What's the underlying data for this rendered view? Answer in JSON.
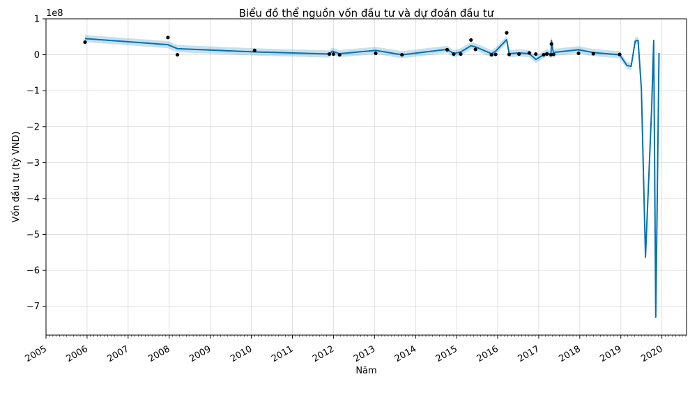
{
  "chart_data": {
    "type": "line",
    "title": "Biểu đồ thể nguồn vốn đầu tư và dự đoán đầu tư",
    "xlabel": "Năm",
    "ylabel": "Vốn đầu tư (tỷ VND)",
    "y_offset_text": "1e8",
    "y_multiplier": 100000000,
    "x_tick_labels": [
      "2005",
      "2006",
      "2007",
      "2008",
      "2009",
      "2010",
      "2011",
      "2012",
      "2013",
      "2014",
      "2015",
      "2016",
      "2017",
      "2018",
      "2019",
      "2020"
    ],
    "y_tick_labels": [
      "1",
      "0",
      "−1",
      "−2",
      "−3",
      "−4",
      "−5",
      "−6",
      "−7"
    ],
    "xlim": [
      2005.0,
      2020.6
    ],
    "ylim": [
      -7.8,
      1.0
    ],
    "grid": true,
    "colors": {
      "forecast_line": "#0072B2",
      "interval_fill": "#0072B2",
      "observations": "#000000",
      "grid": "#d9d9d9"
    },
    "series": [
      {
        "kind": "forecast",
        "x": [
          2005.95,
          2007.97,
          2008.2,
          2010.08,
          2011.9,
          2011.97,
          2012.15,
          2013.03,
          2013.67,
          2014.77,
          2014.93,
          2015.1,
          2015.35,
          2015.46,
          2015.85,
          2015.95,
          2016.22,
          2016.28,
          2016.52,
          2016.77,
          2016.93,
          2017.12,
          2017.2,
          2017.3,
          2017.31,
          2017.36,
          2017.4,
          2017.97,
          2018.33,
          2018.97,
          2019.15,
          2019.25,
          2019.35,
          2019.42,
          2019.5,
          2019.6,
          2019.75,
          2019.8,
          2019.85,
          2019.93
        ],
        "y": [
          0.45,
          0.28,
          0.17,
          0.08,
          0.02,
          0.1,
          0.03,
          0.12,
          0.0,
          0.15,
          0.03,
          0.08,
          0.25,
          0.22,
          0.03,
          0.1,
          0.42,
          0.03,
          0.05,
          0.03,
          -0.13,
          0.0,
          0.06,
          0.0,
          0.4,
          0.02,
          0.07,
          0.14,
          0.06,
          0.0,
          -0.3,
          -0.32,
          0.38,
          0.4,
          -0.95,
          -5.63,
          -1.5,
          0.4,
          -7.3,
          0.05
        ],
        "interval_width": 0.1
      },
      {
        "kind": "observed",
        "x": [
          2005.95,
          2007.97,
          2008.2,
          2010.08,
          2011.9,
          2012.0,
          2012.15,
          2013.03,
          2013.67,
          2014.77,
          2014.93,
          2015.1,
          2015.35,
          2015.46,
          2015.85,
          2015.95,
          2016.22,
          2016.28,
          2016.52,
          2016.77,
          2016.93,
          2017.12,
          2017.2,
          2017.3,
          2017.31,
          2017.36,
          2017.97,
          2018.33,
          2018.97
        ],
        "y": [
          0.35,
          0.48,
          0.0,
          0.12,
          0.02,
          0.02,
          0.0,
          0.04,
          0.0,
          0.14,
          0.02,
          0.02,
          0.41,
          0.15,
          0.0,
          0.01,
          0.61,
          0.01,
          0.02,
          0.05,
          0.02,
          0.0,
          0.02,
          0.0,
          0.3,
          0.01,
          0.04,
          0.03,
          0.01
        ]
      }
    ]
  }
}
